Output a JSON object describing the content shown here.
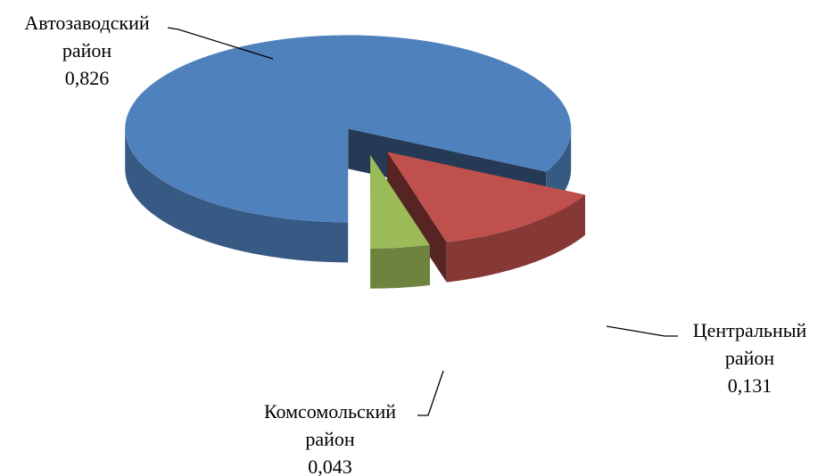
{
  "chart_data": {
    "type": "pie",
    "categories": [
      "Автозаводский район",
      "Центральный район",
      "Комсомольский район"
    ],
    "values": [
      0.826,
      0.131,
      0.043
    ],
    "value_labels": [
      "0,826",
      "0,131",
      "0,043"
    ],
    "colors": [
      "#4f81bd",
      "#c0504d",
      "#9bbb59"
    ]
  }
}
